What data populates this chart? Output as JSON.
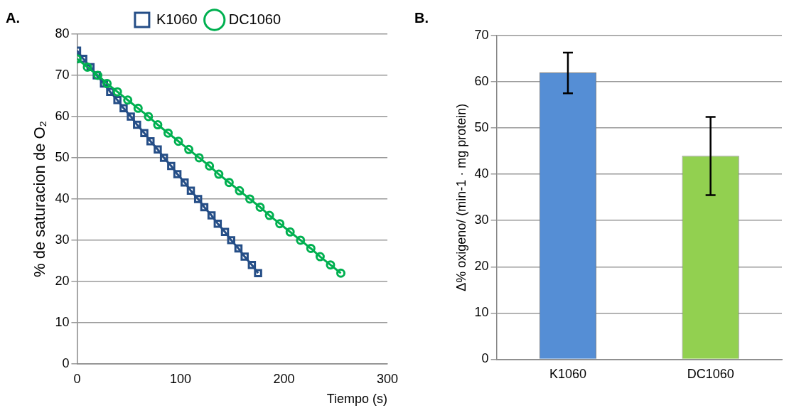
{
  "chart_data": [
    {
      "type": "line",
      "annotations": [
        "A."
      ],
      "xlabel": "Tiempo (s)",
      "ylabel": "% de saturacion de O₂",
      "xlim": [
        0,
        300
      ],
      "xticks": [
        0,
        100,
        200,
        300
      ],
      "ylim": [
        0,
        80
      ],
      "yticks": [
        0,
        10,
        20,
        30,
        40,
        50,
        60,
        70,
        80
      ],
      "grid": "y",
      "legend": "top",
      "line_style": "solid",
      "series": [
        {
          "name": "K1060",
          "color": "#254e87",
          "marker": "square",
          "x": [
            0,
            6,
            13,
            19,
            26,
            32,
            39,
            45,
            52,
            58,
            65,
            71,
            78,
            84,
            91,
            97,
            104,
            110,
            117,
            123,
            130,
            136,
            143,
            149,
            156,
            162,
            169,
            175
          ],
          "values": [
            76,
            74,
            72,
            70,
            68,
            66,
            64,
            62,
            60,
            58,
            56,
            54,
            52,
            50,
            48,
            46,
            44,
            42,
            40,
            38,
            36,
            34,
            32,
            30,
            28,
            26,
            24,
            22
          ]
        },
        {
          "name": "DC1060",
          "color": "#00b050",
          "marker": "circle",
          "x": [
            0,
            10,
            20,
            29,
            39,
            49,
            59,
            69,
            78,
            88,
            98,
            108,
            118,
            128,
            137,
            147,
            157,
            167,
            177,
            186,
            196,
            206,
            216,
            226,
            235,
            245,
            255
          ],
          "values": [
            74,
            72,
            70,
            68,
            66,
            64,
            62,
            60,
            58,
            56,
            54,
            52,
            50,
            48,
            46,
            44,
            42,
            40,
            38,
            36,
            34,
            32,
            30,
            28,
            26,
            24,
            22
          ]
        }
      ]
    },
    {
      "type": "bar",
      "annotations": [
        "B."
      ],
      "ylabel": "Δ% oxigeno/ (min-1 · mg protein)",
      "categories": [
        "K1060",
        "DC1060"
      ],
      "values": [
        62,
        44
      ],
      "colors": [
        "#558ed5",
        "#92d050"
      ],
      "errors": [
        [
          57.5,
          66.3
        ],
        [
          35.5,
          52.4
        ]
      ],
      "ylim": [
        0,
        70
      ],
      "yticks": [
        0,
        10,
        20,
        30,
        40,
        50,
        60,
        70
      ],
      "grid": "y",
      "legend": false
    }
  ]
}
